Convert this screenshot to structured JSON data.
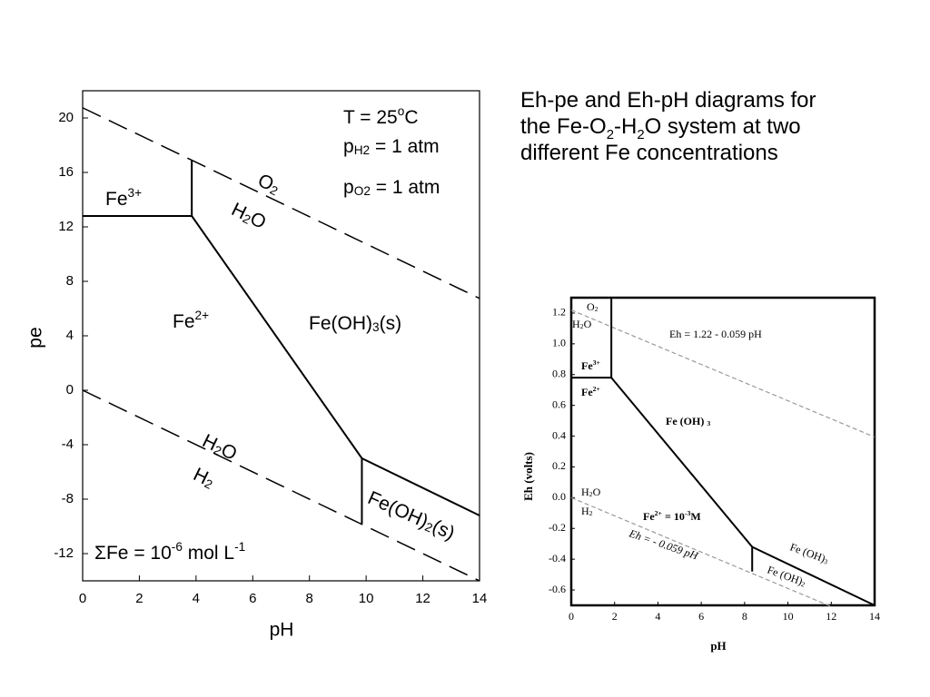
{
  "title": {
    "lines": [
      [
        "Eh-pe and Eh-pH diagrams for"
      ],
      [
        "the Fe-O",
        {
          "sub": "2"
        },
        "-H",
        {
          "sub": "2"
        },
        "O system at two"
      ],
      [
        "different Fe concentrations"
      ]
    ]
  },
  "chart_data": [
    {
      "type": "line",
      "x_label": "pH",
      "y_label": "pe",
      "xlim": [
        0,
        14
      ],
      "xticks": [
        0,
        2,
        4,
        6,
        8,
        10,
        12,
        14
      ],
      "ylim": [
        -14,
        22
      ],
      "yticks": [
        -12,
        -8,
        -4,
        0,
        4,
        8,
        12,
        16,
        20
      ],
      "series": [
        {
          "color": "#000000",
          "dashed": true,
          "x": [
            0,
            14
          ],
          "values": [
            20.75,
            6.75
          ]
        },
        {
          "color": "#000000",
          "dashed": true,
          "x": [
            0,
            14
          ],
          "values": [
            0,
            -14
          ]
        },
        {
          "color": "#000000",
          "dashed": false,
          "x": [
            0,
            3.85,
            3.85
          ],
          "values": [
            12.8,
            12.8,
            16.9
          ]
        },
        {
          "color": "#000000",
          "dashed": false,
          "x": [
            3.85,
            9.85,
            9.85
          ],
          "values": [
            12.8,
            -5,
            -9.8
          ]
        },
        {
          "color": "#000000",
          "dashed": false,
          "x": [
            9.85,
            14
          ],
          "values": [
            -5,
            -9.2
          ]
        }
      ],
      "annotations": [
        {
          "parts": [
            "T = 25",
            {
              "sup": "o"
            },
            "C"
          ]
        },
        {
          "parts": [
            "p",
            {
              "sub": "H"
            },
            {
              "sub": "2"
            },
            " = 1 atm"
          ]
        },
        {
          "parts": [
            "p",
            {
              "sub": "O"
            },
            {
              "sub": "2"
            },
            " = 1 atm"
          ]
        },
        {
          "parts": [
            "O",
            {
              "sub": "2"
            }
          ]
        },
        {
          "parts": [
            "H",
            {
              "sub": "2"
            },
            "O"
          ]
        },
        {
          "parts": [
            "Fe",
            {
              "sup": "3+"
            }
          ]
        },
        {
          "parts": [
            "Fe",
            {
              "sup": "2+"
            }
          ]
        },
        {
          "parts": [
            "Fe(OH)",
            {
              "sub": "3"
            },
            "(s)"
          ]
        },
        {
          "parts": [
            "H",
            {
              "sub": "2"
            },
            "O"
          ]
        },
        {
          "parts": [
            "H",
            {
              "sub": "2"
            }
          ]
        },
        {
          "parts": [
            "Fe(OH)",
            {
              "sub": "2"
            },
            "(s)"
          ]
        },
        {
          "parts": [
            "ΣFe = 10",
            {
              "sup": "-6"
            },
            " mol L",
            {
              "sup": "-1"
            }
          ]
        }
      ]
    },
    {
      "type": "line",
      "x_label": "pH",
      "y_label": "Eh  (volts)",
      "xlim": [
        0,
        14
      ],
      "xticks": [
        0,
        2,
        4,
        6,
        8,
        10,
        12,
        14
      ],
      "ylim": [
        -0.7,
        1.3
      ],
      "yticks": [
        -0.6,
        -0.4,
        -0.2,
        {
          "value": 0,
          "label": "0.0"
        },
        0.2,
        0.4,
        0.6,
        0.8,
        {
          "value": 1,
          "label": "1.0"
        },
        1.2
      ],
      "series": [
        {
          "color": "#999999",
          "dashed": true,
          "x": [
            0,
            14
          ],
          "values": [
            1.22,
            0.394
          ]
        },
        {
          "color": "#999999",
          "dashed": true,
          "x": [
            0,
            12
          ],
          "values": [
            0,
            -0.708
          ]
        },
        {
          "color": "#000000",
          "dashed": false,
          "x": [
            0,
            1.85,
            1.85
          ],
          "values": [
            0.78,
            0.78,
            1.3
          ]
        },
        {
          "color": "#000000",
          "dashed": false,
          "x": [
            1.85,
            8.35,
            8.35
          ],
          "values": [
            0.78,
            -0.32,
            -0.48
          ]
        },
        {
          "color": "#000000",
          "dashed": false,
          "x": [
            8.35,
            14
          ],
          "values": [
            -0.32,
            -0.7
          ]
        }
      ],
      "annotations": [
        {
          "parts": [
            "O",
            {
              "sub": "2"
            }
          ]
        },
        {
          "parts": [
            "H",
            {
              "sub": "2"
            },
            "O"
          ]
        },
        {
          "parts": [
            "Eh = 1.22 - 0.059 pH"
          ]
        },
        {
          "parts": [
            "Fe",
            {
              "sup": "3+"
            }
          ]
        },
        {
          "parts": [
            "Fe",
            {
              "sup": "2+"
            }
          ]
        },
        {
          "parts": [
            "Fe (OH) ",
            {
              "sub": "3"
            }
          ]
        },
        {
          "parts": [
            "H",
            {
              "sub": "2"
            },
            "O"
          ]
        },
        {
          "parts": [
            "H",
            {
              "sub": "2"
            }
          ]
        },
        {
          "parts": [
            "Fe",
            {
              "sup": "2+"
            },
            " = 10",
            {
              "sup": "-3"
            },
            "M"
          ]
        },
        {
          "parts": [
            "Eh = - 0.059 pH"
          ]
        },
        {
          "parts": [
            "Fe (OH)",
            {
              "sub": "3"
            }
          ]
        },
        {
          "parts": [
            "Fe (OH)",
            {
              "sub": "2"
            }
          ]
        }
      ]
    }
  ]
}
